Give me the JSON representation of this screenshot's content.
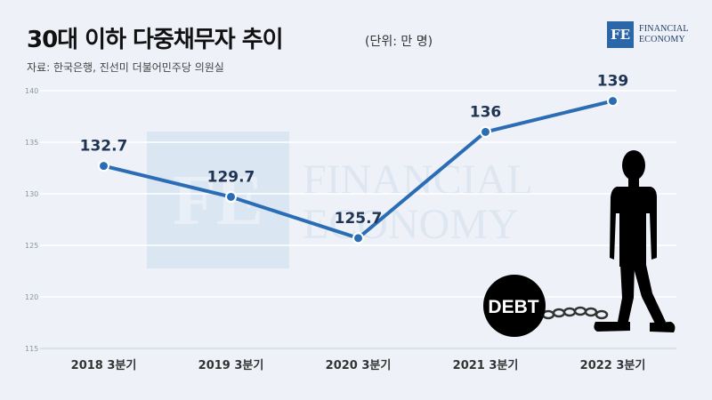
{
  "header": {
    "title": "30대 이하 다중채무자 추이",
    "unit": "(단위: 만 명)",
    "source": "자료: 한국은행, 진선미 더불어민주당 의원실"
  },
  "logo": {
    "mark": "FE",
    "line1": "FINANCIAL",
    "line2": "ECONOMY"
  },
  "watermark": {
    "mark": "FE",
    "line1": "FINANCIAL",
    "line2": "ECONOMY"
  },
  "illustration": {
    "ball_label": "DEBT"
  },
  "colors": {
    "background": "#eef2f8",
    "line": "#2a6db5",
    "grid": "#ffffff",
    "accent": "#2a66a8"
  },
  "chart_data": {
    "type": "line",
    "categories": [
      "2018 3분기",
      "2019 3분기",
      "2020 3분기",
      "2021 3분기",
      "2022 3분기"
    ],
    "values": [
      132.7,
      129.7,
      125.7,
      136,
      139
    ],
    "data_labels": [
      "132.7",
      "129.7",
      "125.7",
      "136",
      "139"
    ],
    "y_ticks": [
      115,
      120,
      125,
      130,
      135,
      140
    ],
    "ylim": [
      115,
      140
    ],
    "grid": true,
    "title": "30대 이하 다중채무자 추이",
    "xlabel": "",
    "ylabel": ""
  }
}
